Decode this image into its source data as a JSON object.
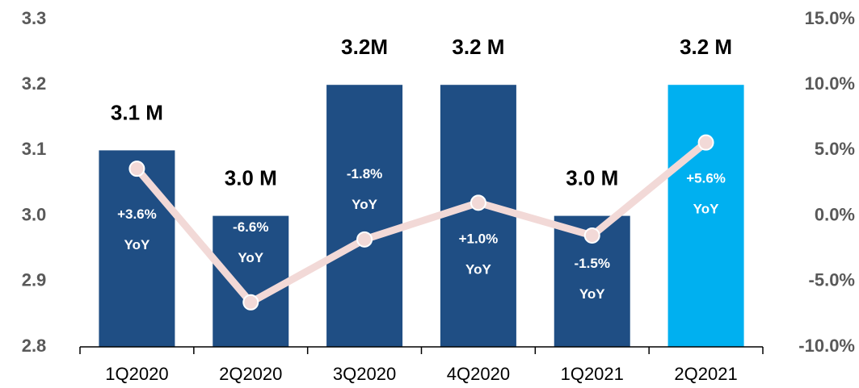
{
  "chart_data": {
    "type": "bar",
    "categories": [
      "1Q2020",
      "2Q2020",
      "3Q2020",
      "4Q2020",
      "1Q2021",
      "2Q2021"
    ],
    "series": [
      {
        "type": "bar",
        "colors": [
          "#1f4e84",
          "#1f4e84",
          "#1f4e84",
          "#1f4e84",
          "#1f4e84",
          "#00b0f0"
        ],
        "values": [
          3.1,
          3.0,
          3.2,
          3.2,
          3.0,
          3.2
        ],
        "value_labels": [
          "3.1 M",
          "3.0 M",
          "3.2M",
          "3.2 M",
          "3.0 M",
          "3.2 M"
        ]
      },
      {
        "type": "line",
        "axis": "y2",
        "color": "#f2d9d7",
        "values": [
          3.6,
          -6.6,
          -1.8,
          1.0,
          -1.5,
          5.6
        ],
        "value_labels": [
          "+3.6% YoY",
          "-6.6% YoY",
          "-1.8% YoY",
          "+1.0% YoY",
          "-1.5% YoY",
          "+5.6% YoY"
        ]
      }
    ],
    "ylim": [
      2.8,
      3.3
    ],
    "yticks": [
      2.8,
      2.9,
      {
        "value": 3,
        "label": "3.0"
      },
      3.1,
      3.2,
      3.3
    ],
    "y2lim": [
      -10,
      15
    ],
    "y2ticks": [
      {
        "value": -10,
        "label": "-10.0%"
      },
      {
        "value": -5,
        "label": "-5.0%"
      },
      {
        "value": 0,
        "label": "0.0%"
      },
      {
        "value": 5,
        "label": "5.0%"
      },
      {
        "value": 10,
        "label": "10.0%"
      },
      {
        "value": 15,
        "label": "15.0%"
      }
    ]
  }
}
